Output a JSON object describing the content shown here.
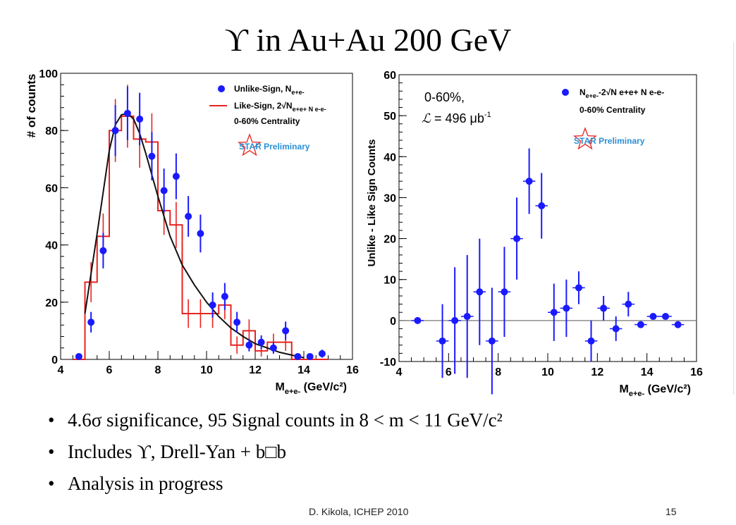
{
  "slide": {
    "title": "ϒ in Au+Au 200 GeV",
    "bullets": [
      "4.6σ significance, 95 Signal counts in 8 < m < 11 GeV/c²",
      "Includes ϒ, Drell-Yan + b□b",
      "Analysis in progress"
    ],
    "footer_author": "D. Kikola, ICHEP 2010",
    "footer_page": "15"
  },
  "colors": {
    "data_points": "#1a1aff",
    "like_sign_hist": "#e8231f",
    "fit_curve": "#111111",
    "star_logo_text": "#2a8fd6",
    "star_logo_outline": "#e8231f"
  },
  "chart_data": [
    {
      "type": "scatter",
      "xlabel": "M_e+e- (GeV/c²)",
      "ylabel": "# of counts",
      "xlim": [
        4,
        16
      ],
      "ylim": [
        0,
        100
      ],
      "x_ticks": [
        "4",
        "6",
        "8",
        "10",
        "12",
        "14",
        "16"
      ],
      "y_ticks": [
        "0",
        "20",
        "40",
        "60",
        "80",
        "100"
      ],
      "grid": false,
      "legend_position": "top-right",
      "legend": [
        {
          "label": "Unlike-Sign, N",
          "sub": "e+e-",
          "marker": "point"
        },
        {
          "label": "Like-Sign, 2√N",
          "sub": "e+e+ N e-e-",
          "marker": "line"
        },
        {
          "label": "0-60% Centrality",
          "marker": "none"
        }
      ],
      "logo_text": "STAR Preliminary",
      "series": [
        {
          "name": "Unlike-Sign",
          "style": "points",
          "x": [
            4.75,
            5.25,
            5.75,
            6.25,
            6.75,
            7.25,
            7.75,
            8.25,
            8.75,
            9.25,
            9.75,
            10.25,
            10.75,
            11.25,
            11.75,
            12.25,
            12.75,
            13.25,
            13.75,
            14.25,
            14.75
          ],
          "y": [
            1,
            13,
            38,
            80,
            86,
            84,
            71,
            59,
            64,
            50,
            44,
            19,
            22,
            13,
            5,
            6,
            4,
            10,
            1,
            1,
            2
          ],
          "err": [
            1,
            3.6,
            6.2,
            8.9,
            9.3,
            9.2,
            8.4,
            7.7,
            8,
            7.1,
            6.6,
            4.4,
            4.7,
            3.6,
            2.2,
            2.4,
            2,
            3.2,
            1,
            1,
            1.4
          ]
        },
        {
          "name": "Like-Sign",
          "style": "step",
          "bin_edges": [
            4.5,
            5,
            5.5,
            6,
            6.5,
            7,
            7.5,
            8,
            8.5,
            9,
            9.5,
            10,
            10.5,
            11,
            11.5,
            12,
            12.5,
            13,
            13.5,
            14,
            14.5,
            15
          ],
          "y": [
            0,
            27,
            43,
            80,
            85,
            77,
            76,
            52,
            47,
            16,
            16,
            16,
            19,
            5,
            10,
            3,
            6,
            6,
            0,
            0,
            0
          ],
          "err": [
            0,
            7,
            8,
            11,
            11,
            10,
            10,
            8.5,
            8,
            5,
            5,
            5,
            5,
            3,
            4,
            2,
            3,
            3,
            0,
            0,
            0
          ]
        },
        {
          "name": "fit",
          "style": "curve",
          "x": [
            5,
            5.5,
            6,
            6.25,
            6.5,
            6.75,
            7,
            7.25,
            7.5,
            8,
            8.5,
            9,
            9.5,
            10,
            10.5,
            11,
            11.5,
            12,
            12.5,
            13,
            13.5,
            14
          ],
          "y": [
            16,
            44,
            73,
            82,
            85.5,
            86,
            84,
            79,
            72,
            57,
            43,
            33,
            26,
            20,
            15,
            11,
            8,
            5.5,
            4,
            2.5,
            1.5,
            0.6
          ]
        }
      ]
    },
    {
      "type": "scatter",
      "xlabel": "M_e+e- (GeV/c²)",
      "ylabel": "Unlike - Like Sign Counts",
      "xlim": [
        4,
        16
      ],
      "ylim": [
        -10,
        60
      ],
      "x_ticks": [
        "4",
        "6",
        "8",
        "10",
        "12",
        "14",
        "16"
      ],
      "y_ticks": [
        "-10",
        "0",
        "10",
        "20",
        "30",
        "40",
        "50",
        "60"
      ],
      "grid": false,
      "legend_position": "top-right",
      "legend": [
        {
          "label": "N",
          "sub": "e+e-",
          "suffix": "-2√N e+e+ N e-e-",
          "marker": "point"
        },
        {
          "label": "0-60% Centrality",
          "marker": "none"
        }
      ],
      "annotation": {
        "line1": "0-60%,",
        "lum_symbol": "ℒ",
        "lum_text": " = 496 μb",
        "lum_exp": "-1"
      },
      "logo_text": "STAR Preliminary",
      "reference_line_y": 0,
      "series": [
        {
          "name": "Unlike - Like",
          "style": "points",
          "x": [
            4.75,
            5.75,
            6.25,
            6.75,
            7.25,
            7.75,
            8.25,
            8.75,
            9.25,
            9.75,
            10.25,
            10.75,
            11.25,
            11.75,
            12.25,
            12.75,
            13.25,
            13.75,
            14.25,
            14.75,
            15.25
          ],
          "y": [
            0,
            -5,
            0,
            1,
            7,
            -5,
            7,
            20,
            34,
            28,
            2,
            3,
            8,
            -5,
            3,
            -2,
            4,
            -1,
            1,
            1,
            -1
          ],
          "err": [
            0,
            9,
            13,
            15,
            13,
            13,
            11,
            10,
            8,
            8,
            7,
            7,
            4,
            5,
            3,
            3,
            3,
            0.6,
            0.6,
            0.6,
            0.6
          ]
        }
      ]
    }
  ]
}
